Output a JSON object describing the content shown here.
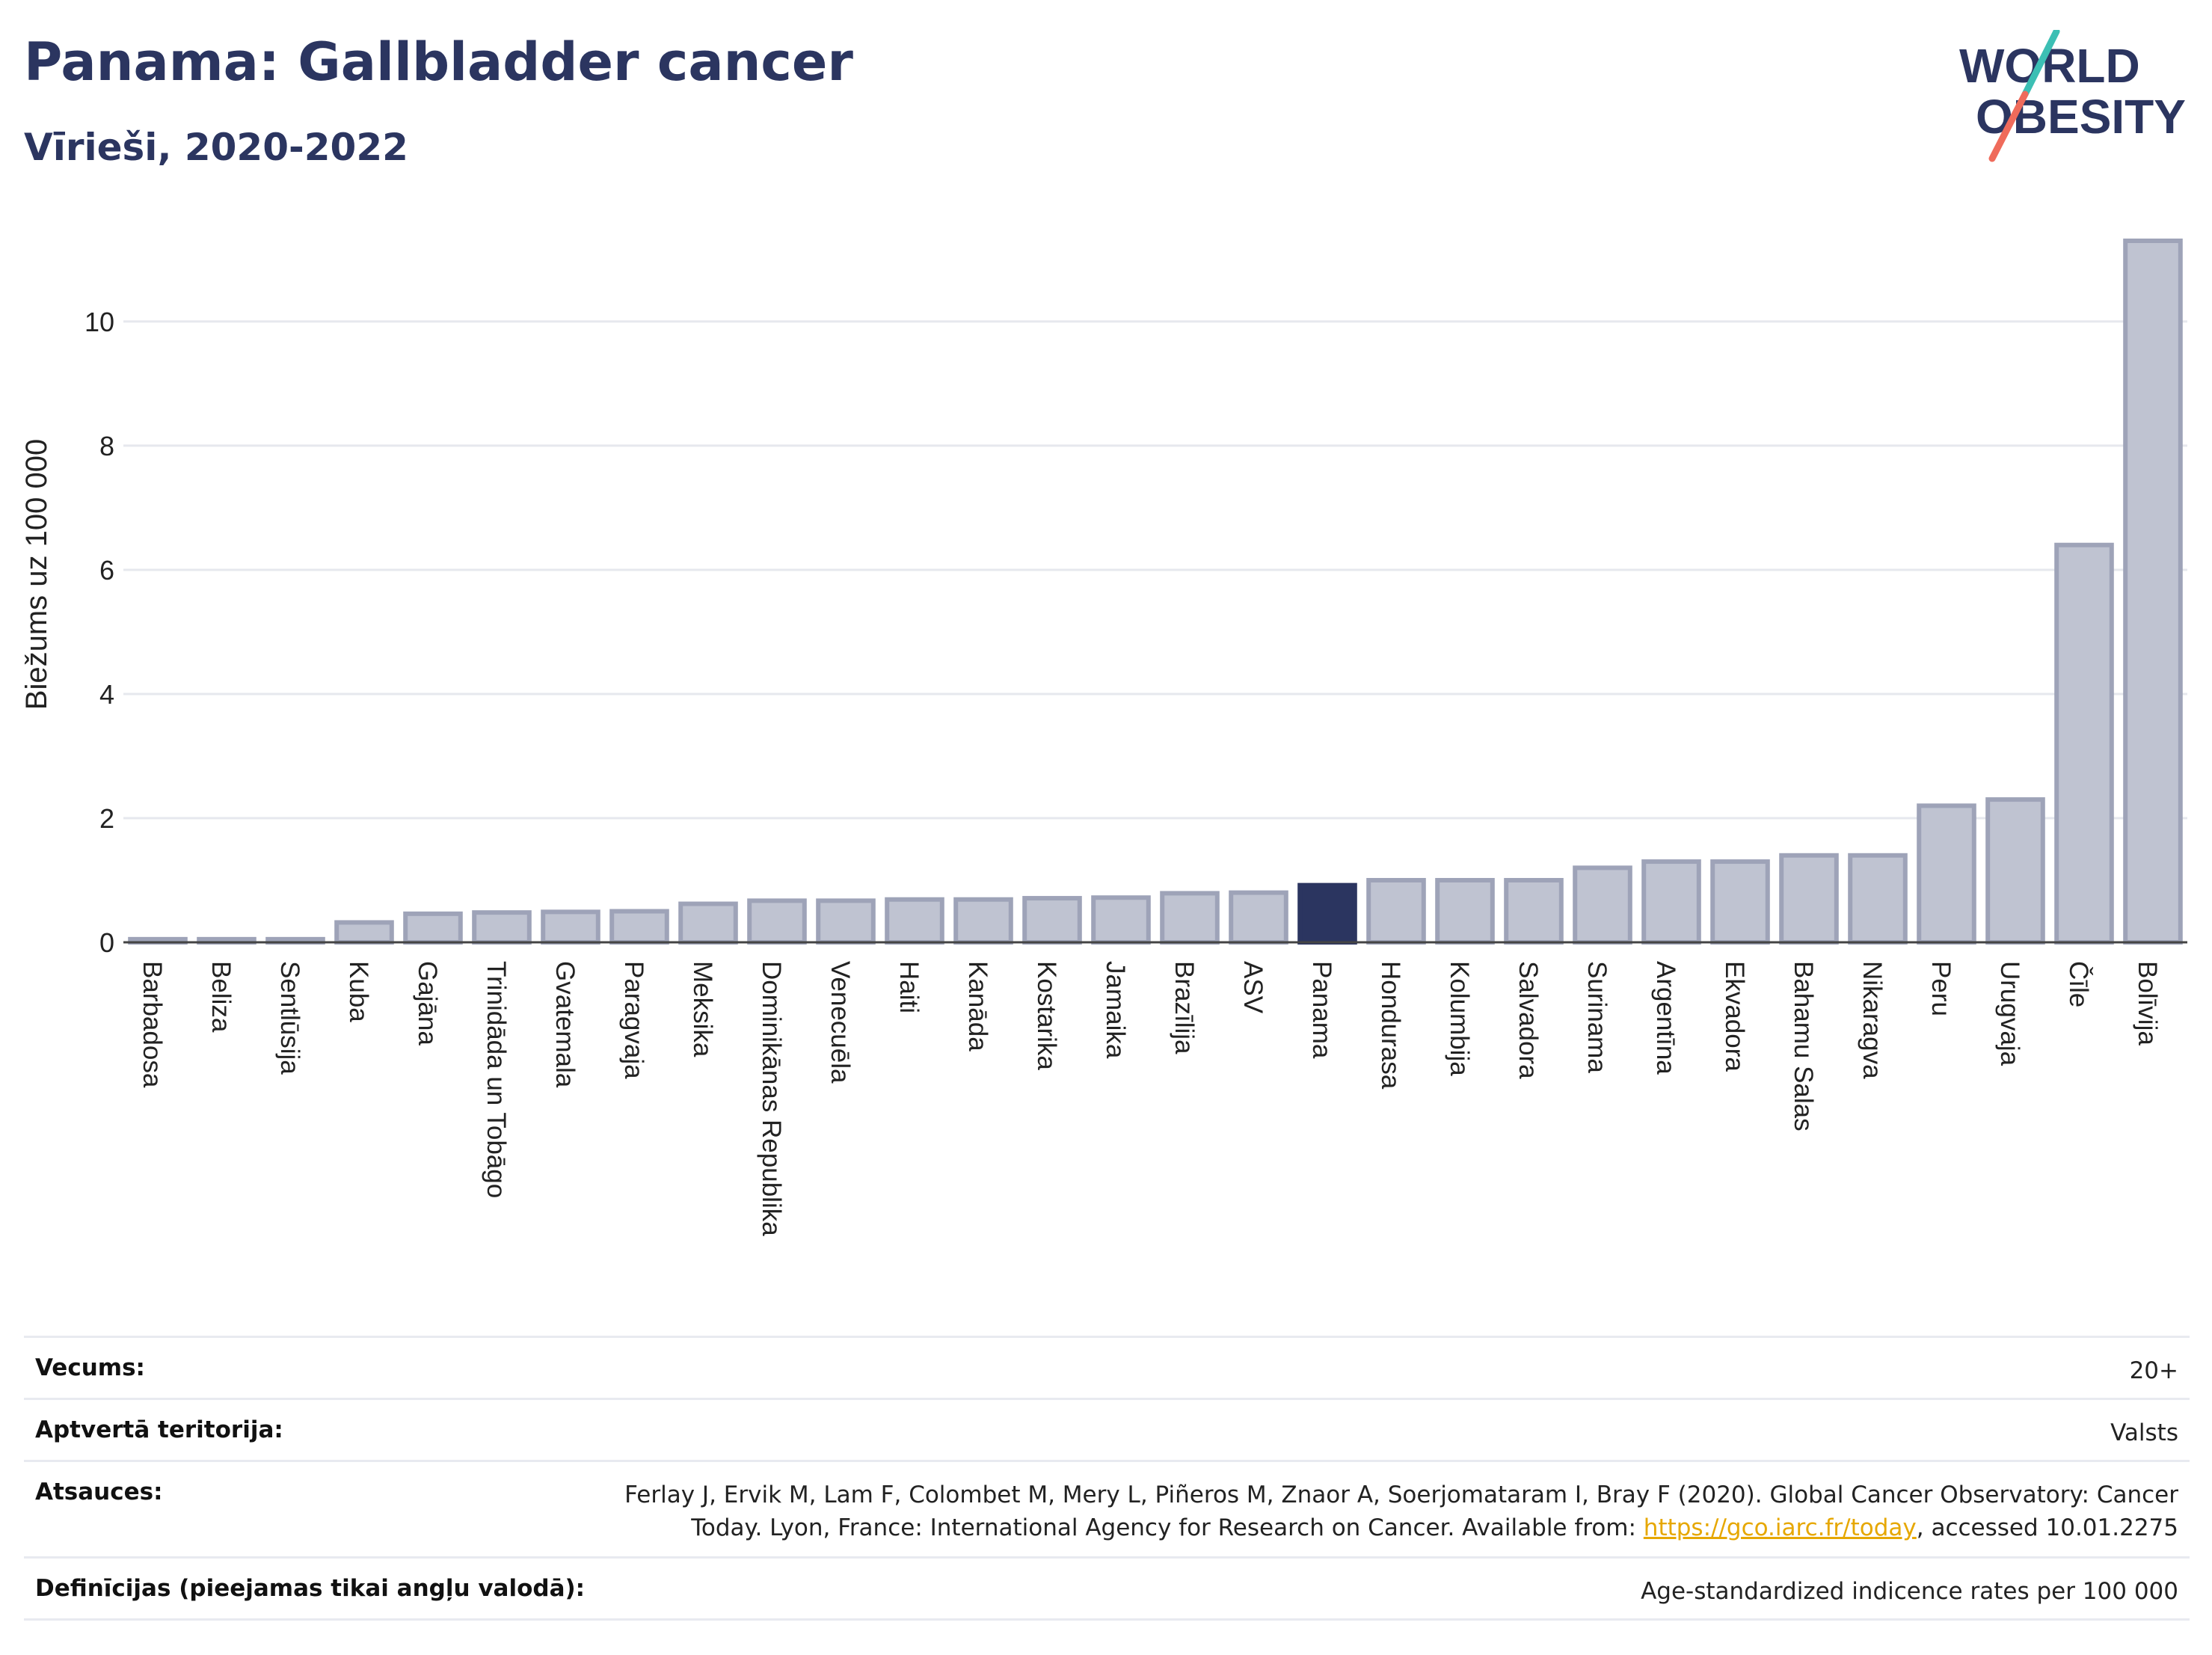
{
  "header": {
    "title": "Panama: Gallbladder cancer",
    "subtitle": "Vīrieši, 2020-2022",
    "logo_line1": "WORLD",
    "logo_line2": "OBESITY"
  },
  "colors": {
    "title": "#2b3560",
    "bar": "#bfc3d1",
    "bar_stroke": "#9ea3b8",
    "highlight": "#2b3560",
    "link": "#e6a700"
  },
  "chart_data": {
    "type": "bar",
    "title": "Panama: Gallbladder cancer",
    "subtitle": "Vīrieši, 2020-2022",
    "xlabel": "",
    "ylabel": "Biežums uz 100 000",
    "ylim": [
      0,
      11.3
    ],
    "yticks": [
      0,
      2,
      4,
      6,
      8,
      10
    ],
    "grid": true,
    "highlight": "Panama",
    "categories": [
      "Barbadosa",
      "Beliza",
      "Sentlūsija",
      "Kuba",
      "Gajāna",
      "Trinidāda un Tobāgo",
      "Gvatemala",
      "Paragvaja",
      "Meksika",
      "Dominikānas Republika",
      "Venecuēla",
      "Haiti",
      "Kanāda",
      "Kostarika",
      "Jamaika",
      "Brazīlija",
      "ASV",
      "Panama",
      "Hondurasa",
      "Kolumbija",
      "Salvadora",
      "Surinama",
      "Argentīna",
      "Ekvadora",
      "Bahamu Salas",
      "Nikaragva",
      "Peru",
      "Urugvaja",
      "Čīle",
      "Bolīvija"
    ],
    "values": [
      0.05,
      0.05,
      0.05,
      0.32,
      0.46,
      0.48,
      0.49,
      0.5,
      0.62,
      0.67,
      0.67,
      0.69,
      0.69,
      0.71,
      0.72,
      0.79,
      0.8,
      0.92,
      1.0,
      1.0,
      1.0,
      1.2,
      1.3,
      1.3,
      1.4,
      1.4,
      2.2,
      2.3,
      6.4,
      11.3
    ]
  },
  "meta": {
    "rows": [
      {
        "label": "Vecums:",
        "value": "20+"
      },
      {
        "label": "Aptvertā teritorija:",
        "value": "Valsts"
      },
      {
        "label": "Atsauces:",
        "value_line1": "Ferlay J, Ervik M, Lam F, Colombet M, Mery L, Piñeros M, Znaor A, Soerjomataram I, Bray F (2020). Global Cancer Observatory: Cancer",
        "value_line2_pre": "Today. Lyon, France: International Agency for Research on Cancer. Available from: ",
        "value_link": "https://gco.iarc.fr/today",
        "value_line2_post": ", accessed 10.01.2275"
      },
      {
        "label": "Definīcijas (pieejamas tikai angļu valodā):",
        "value": "Age-standardized indicence rates per 100 000"
      }
    ]
  }
}
